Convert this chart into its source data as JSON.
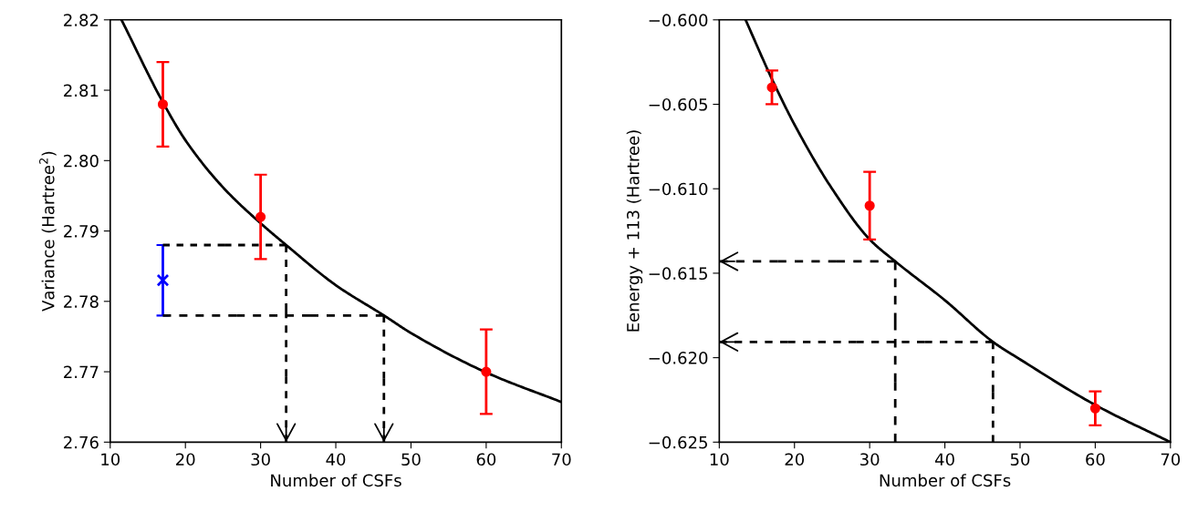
{
  "chart_data": [
    {
      "type": "line",
      "xlabel": "Number of CSFs",
      "ylabel": "Variance (Hartree$^{2}$)",
      "xlim": [
        10,
        70
      ],
      "ylim": [
        2.76,
        2.82
      ],
      "xticks": [
        10,
        20,
        30,
        40,
        50,
        60,
        70
      ],
      "yticks": [
        {
          "value": 2.76,
          "label": "2.76"
        },
        {
          "value": 2.77,
          "label": "2.77"
        },
        {
          "value": 2.78,
          "label": "2.78"
        },
        {
          "value": 2.79,
          "label": "2.79"
        },
        {
          "value": 2.8,
          "label": "2.80"
        },
        {
          "value": 2.81,
          "label": "2.81"
        },
        {
          "value": 2.82,
          "label": "2.82"
        }
      ],
      "grid": false,
      "series": [
        {
          "color": "#000000",
          "marker": "none",
          "line_style": "solid",
          "x": [
            11.5,
            17,
            20,
            25,
            30,
            33.4,
            40,
            46.4,
            50,
            60,
            70
          ],
          "values": [
            2.82,
            2.8083,
            2.8029,
            2.7962,
            2.7911,
            2.788,
            2.7823,
            2.778,
            2.7755,
            2.7699,
            2.7657
          ]
        },
        {
          "type": "scatter",
          "color": "#ff0000",
          "marker": "circle",
          "x": [
            17,
            30,
            60
          ],
          "values": [
            2.808,
            2.792,
            2.77
          ],
          "errors": [
            0.006,
            0.006,
            0.006
          ]
        },
        {
          "type": "scatter",
          "color": "#0000ff",
          "marker": "cross",
          "x": [
            17
          ],
          "values": [
            2.783
          ],
          "errors": [
            0.005
          ]
        }
      ]
    },
    {
      "type": "line",
      "xlabel": "Number of CSFs",
      "ylabel": "Eenergy + 113 (Hartree)",
      "xlim": [
        10,
        70
      ],
      "ylim": [
        -0.625,
        -0.6
      ],
      "xticks": [
        10,
        20,
        30,
        40,
        50,
        60,
        70
      ],
      "yticks": [
        {
          "value": -0.625,
          "label": "−0.625"
        },
        {
          "value": -0.62,
          "label": "−0.620"
        },
        {
          "value": -0.615,
          "label": "−0.615"
        },
        {
          "value": -0.61,
          "label": "−0.610"
        },
        {
          "value": -0.605,
          "label": "−0.605"
        },
        {
          "value": -0.6,
          "label": "−0.600"
        }
      ],
      "grid": false,
      "series": [
        {
          "color": "#000000",
          "marker": "none",
          "line_style": "solid",
          "x": [
            13.5,
            17,
            20,
            25,
            30,
            33.4,
            40,
            46.5,
            50,
            60,
            70
          ],
          "values": [
            -0.6,
            -0.6035,
            -0.6062,
            -0.61,
            -0.613,
            -0.6143,
            -0.6166,
            -0.6191,
            -0.6201,
            -0.6228,
            -0.625
          ]
        },
        {
          "type": "scatter",
          "color": "#ff0000",
          "marker": "circle",
          "x": [
            17,
            30,
            60
          ],
          "values": [
            -0.604,
            -0.611,
            -0.623
          ],
          "errors": [
            0.001,
            0.002,
            0.001
          ]
        }
      ]
    }
  ]
}
